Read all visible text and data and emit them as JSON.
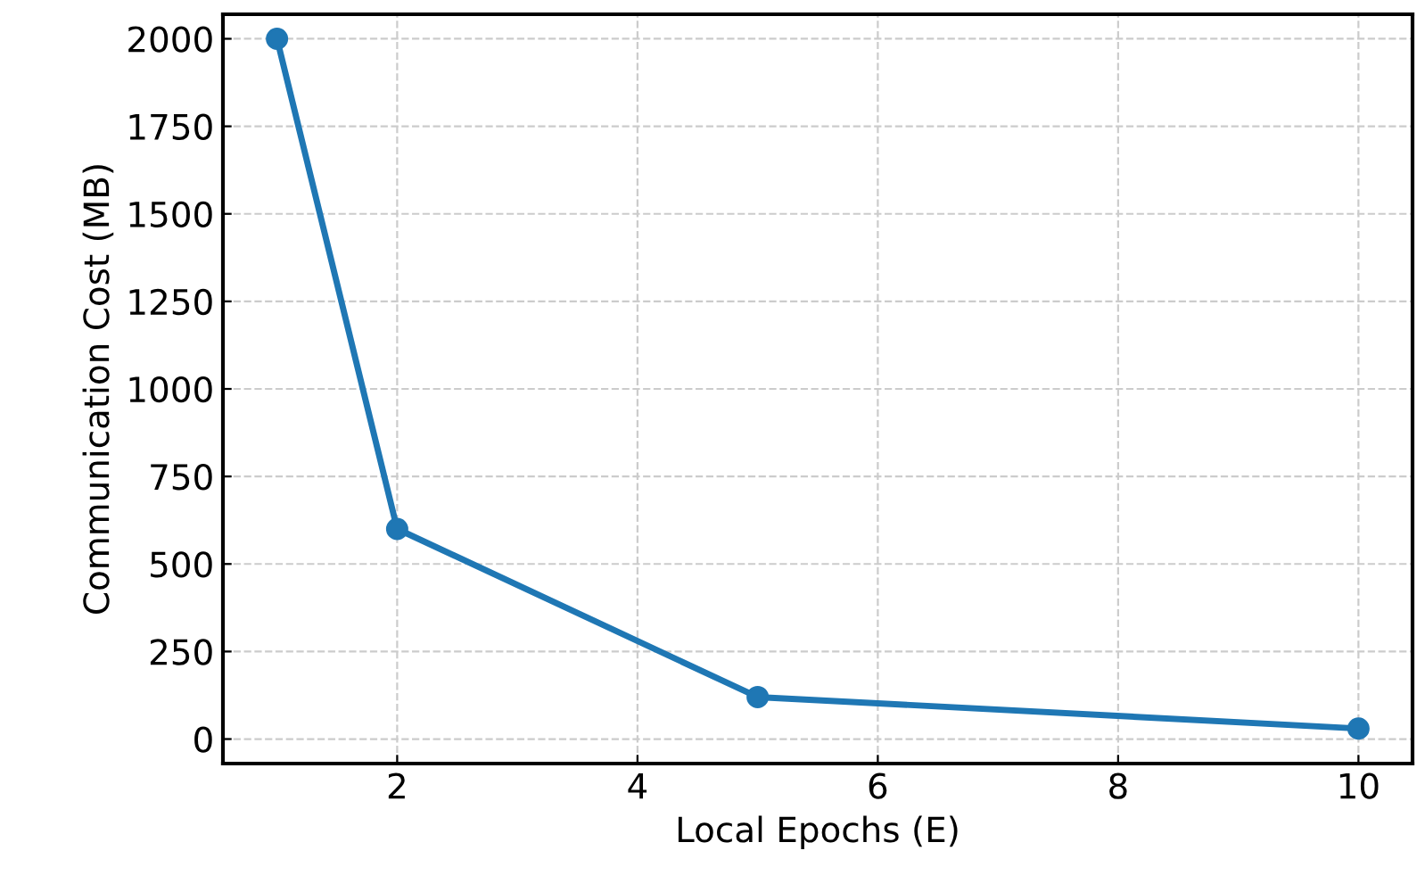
{
  "chart_data": {
    "type": "line",
    "xlabel": "Local Epochs (E)",
    "ylabel": "Communication Cost (MB)",
    "x": [
      1,
      2,
      5,
      10
    ],
    "series": [
      {
        "color": "#1f77b4",
        "values": [
          2000,
          600,
          120,
          30
        ]
      }
    ],
    "xlim": [
      0.55,
      10.45
    ],
    "ylim": [
      -70,
      2070
    ],
    "xticks": [
      2,
      4,
      6,
      8,
      10
    ],
    "yticks": [
      0,
      250,
      500,
      750,
      1000,
      1250,
      1500,
      1750,
      2000
    ],
    "grid": true,
    "marker": "circle",
    "line_style": "solid"
  }
}
